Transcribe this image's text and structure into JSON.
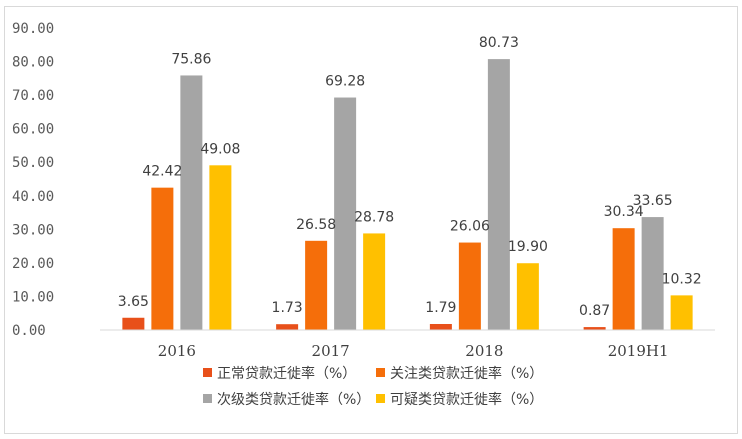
{
  "chart_data": {
    "type": "bar",
    "title": "",
    "xlabel": "",
    "ylabel": "",
    "categories": [
      "2016",
      "2017",
      "2018",
      "2019H1"
    ],
    "ylim": [
      0,
      90
    ],
    "yticks": [
      "0.00",
      "10.00",
      "20.00",
      "30.00",
      "40.00",
      "50.00",
      "60.00",
      "70.00",
      "80.00",
      "90.00"
    ],
    "grid": false,
    "legend_position": "bottom",
    "series": [
      {
        "name": "正常贷款迁徙率（%）",
        "color": "#e8501a",
        "values": [
          3.65,
          1.73,
          1.79,
          0.87
        ],
        "labels": [
          "3.65",
          "1.73",
          "1.79",
          "0.87"
        ]
      },
      {
        "name": "关注类贷款迁徙率（%）",
        "color": "#f56e0a",
        "values": [
          42.42,
          26.58,
          26.06,
          30.34
        ],
        "labels": [
          "42.42",
          "26.58",
          "26.06",
          "30.34"
        ]
      },
      {
        "name": "次级类贷款迁徙率（%）",
        "color": "#a5a5a5",
        "values": [
          75.86,
          69.28,
          80.73,
          33.65
        ],
        "labels": [
          "75.86",
          "69.28",
          "80.73",
          "33.65"
        ]
      },
      {
        "name": "可疑类贷款迁徙率（%）",
        "color": "#ffc000",
        "values": [
          49.08,
          28.78,
          19.9,
          10.32
        ],
        "labels": [
          "49.08",
          "28.78",
          "19.90",
          "10.32"
        ]
      }
    ]
  }
}
